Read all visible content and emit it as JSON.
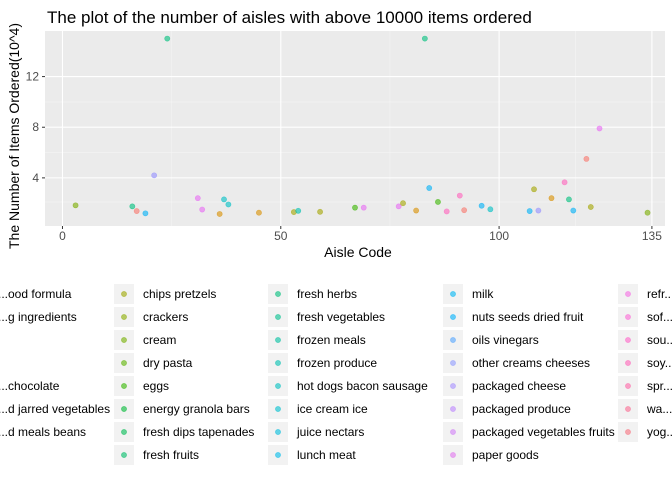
{
  "chart_data": {
    "type": "scatter",
    "title": "The plot of the number of aisles with above 10000 items ordered",
    "xlabel": "Aisle Code",
    "ylabel": "The Number of Items Ordered(10^4)",
    "xlim": [
      -4,
      138
    ],
    "ylim": [
      0.2,
      15.6
    ],
    "x_ticks": [
      0,
      50,
      100,
      135
    ],
    "y_ticks": [
      4,
      8,
      12
    ],
    "grid": true,
    "legend_placement": "bottom",
    "points": [
      {
        "x": 3,
        "y": 1.83,
        "color": "#7cae00"
      },
      {
        "x": 16,
        "y": 1.75,
        "color": "#00bf7d"
      },
      {
        "x": 17,
        "y": 1.38,
        "color": "#f8766d"
      },
      {
        "x": 19,
        "y": 1.2,
        "color": "#00b0f6"
      },
      {
        "x": 21,
        "y": 4.2,
        "color": "#9590ff"
      },
      {
        "x": 24,
        "y": 15.0,
        "color": "#00bf7d"
      },
      {
        "x": 31,
        "y": 2.4,
        "color": "#e76bf3"
      },
      {
        "x": 32,
        "y": 1.5,
        "color": "#e76bf3"
      },
      {
        "x": 36,
        "y": 1.15,
        "color": "#d89000"
      },
      {
        "x": 37,
        "y": 2.3,
        "color": "#00bfc4"
      },
      {
        "x": 38,
        "y": 1.9,
        "color": "#00bfc4"
      },
      {
        "x": 45,
        "y": 1.25,
        "color": "#d89000"
      },
      {
        "x": 53,
        "y": 1.3,
        "color": "#a3a500"
      },
      {
        "x": 54,
        "y": 1.4,
        "color": "#00c0af"
      },
      {
        "x": 59,
        "y": 1.32,
        "color": "#a3a500"
      },
      {
        "x": 67,
        "y": 1.65,
        "color": "#39b600"
      },
      {
        "x": 69,
        "y": 1.65,
        "color": "#e76bf3"
      },
      {
        "x": 77,
        "y": 1.75,
        "color": "#e76bf3"
      },
      {
        "x": 78,
        "y": 2.0,
        "color": "#a3a500"
      },
      {
        "x": 81,
        "y": 1.42,
        "color": "#d89000"
      },
      {
        "x": 83,
        "y": 15.0,
        "color": "#00bf7d"
      },
      {
        "x": 84,
        "y": 3.2,
        "color": "#00b0f6"
      },
      {
        "x": 86,
        "y": 2.1,
        "color": "#39b600"
      },
      {
        "x": 88,
        "y": 1.35,
        "color": "#ff62bc"
      },
      {
        "x": 91,
        "y": 2.6,
        "color": "#ff62bc"
      },
      {
        "x": 92,
        "y": 1.45,
        "color": "#f8766d"
      },
      {
        "x": 96,
        "y": 1.8,
        "color": "#00b0f6"
      },
      {
        "x": 98,
        "y": 1.52,
        "color": "#00bfc4"
      },
      {
        "x": 107,
        "y": 1.38,
        "color": "#00b0f6"
      },
      {
        "x": 108,
        "y": 3.1,
        "color": "#a3a500"
      },
      {
        "x": 109,
        "y": 1.42,
        "color": "#9590ff"
      },
      {
        "x": 112,
        "y": 2.4,
        "color": "#d89000"
      },
      {
        "x": 115,
        "y": 3.65,
        "color": "#ff62bc"
      },
      {
        "x": 116,
        "y": 2.3,
        "color": "#00bf7d"
      },
      {
        "x": 117,
        "y": 1.42,
        "color": "#00b0f6"
      },
      {
        "x": 120,
        "y": 5.5,
        "color": "#f8766d"
      },
      {
        "x": 121,
        "y": 1.7,
        "color": "#a3a500"
      },
      {
        "x": 123,
        "y": 7.9,
        "color": "#e76bf3"
      },
      {
        "x": 134,
        "y": 1.25,
        "color": "#7cae00"
      }
    ],
    "legend": [
      {
        "label": "...ood formula",
        "color": "#f8766d"
      },
      {
        "label": "...g ingredients",
        "color": "#f27d52"
      },
      {
        "label": "",
        "color": "#e7861b"
      },
      {
        "label": "",
        "color": "#db8e00"
      },
      {
        "label": "...chocolate",
        "color": "#cd9600"
      },
      {
        "label": "...d jarred vegetables",
        "color": "#be9c00"
      },
      {
        "label": "...d meals beans",
        "color": "#aea200"
      },
      {
        "label": "",
        "color": "#00c1ff"
      },
      {
        "label": "chips pretzels",
        "color": "#9ca700"
      },
      {
        "label": "crackers",
        "color": "#8aab00"
      },
      {
        "label": "cream",
        "color": "#75af00"
      },
      {
        "label": "dry pasta",
        "color": "#5bb300"
      },
      {
        "label": "eggs",
        "color": "#33b600"
      },
      {
        "label": "energy granola bars",
        "color": "#00b935"
      },
      {
        "label": "fresh dips tapenades",
        "color": "#00bb51"
      },
      {
        "label": "fresh fruits",
        "color": "#00bd68"
      },
      {
        "label": "fresh herbs",
        "color": "#00be7c"
      },
      {
        "label": "fresh vegetables",
        "color": "#00bf8e"
      },
      {
        "label": "frozen meals",
        "color": "#00c0a0"
      },
      {
        "label": "frozen produce",
        "color": "#00c0b0"
      },
      {
        "label": "hot dogs bacon sausage",
        "color": "#00c0c0"
      },
      {
        "label": "ice cream ice",
        "color": "#00bfcf"
      },
      {
        "label": "juice nectars",
        "color": "#00bddc"
      },
      {
        "label": "lunch meat",
        "color": "#00bae9"
      },
      {
        "label": "milk",
        "color": "#00b6f4"
      },
      {
        "label": "nuts seeds dried fruit",
        "color": "#00b0fb"
      },
      {
        "label": "oils vinegars",
        "color": "#53a5ff"
      },
      {
        "label": "other creams cheeses",
        "color": "#8f9bff"
      },
      {
        "label": "packaged cheese",
        "color": "#a78fff"
      },
      {
        "label": "packaged produce",
        "color": "#bc85ff"
      },
      {
        "label": "packaged vegetables fruits",
        "color": "#d17ef7"
      },
      {
        "label": "paper goods",
        "color": "#e175ee"
      },
      {
        "label": "refr...",
        "color": "#f56ce3"
      },
      {
        "label": "sof...",
        "color": "#fc68d6"
      },
      {
        "label": "sou...",
        "color": "#ff64c8"
      },
      {
        "label": "soy...",
        "color": "#ff63b8"
      },
      {
        "label": "spr...",
        "color": "#fe66a6"
      },
      {
        "label": "wa...",
        "color": "#fa6c93"
      },
      {
        "label": "yog...",
        "color": "#f6717f"
      }
    ]
  }
}
